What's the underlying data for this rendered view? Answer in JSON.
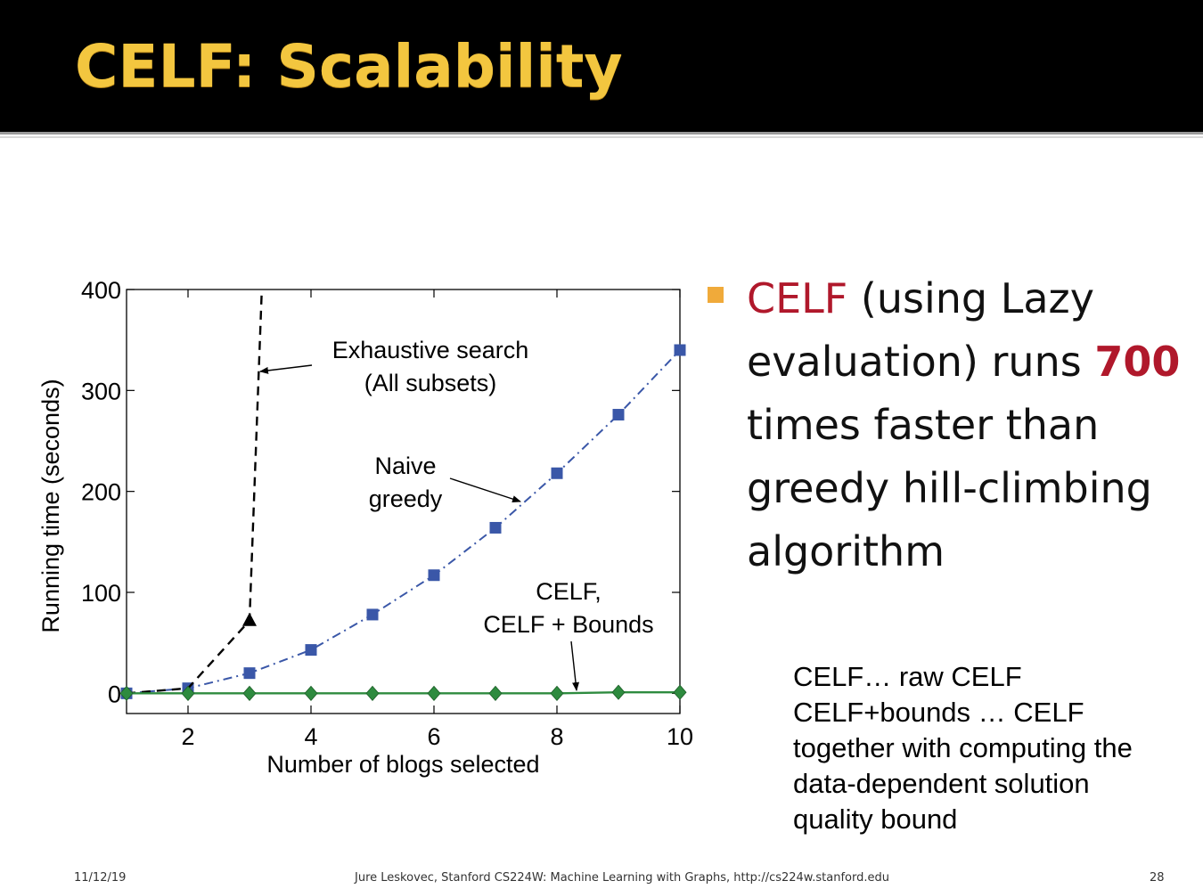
{
  "slide": {
    "title": "CELF: Scalability",
    "bullet": {
      "part1": "CELF",
      "part2": " (using Lazy evaluation) runs ",
      "part3": "700",
      "part4": " times faster than greedy hill-climbing algorithm"
    },
    "note_lines": [
      "CELF… raw CELF",
      "CELF+bounds … CELF",
      "together with computing the",
      "data-dependent solution",
      "quality bound"
    ],
    "footer": {
      "date": "11/12/19",
      "credit": "Jure Leskovec, Stanford CS224W: Machine Learning with Graphs, http://cs224w.stanford.edu",
      "page": "28"
    },
    "colors": {
      "title": "#f3c63f",
      "bullet_marker": "#f0aa3a",
      "highlight": "#b0182b"
    }
  },
  "chart_data": {
    "type": "line",
    "xlabel": "Number of blogs selected",
    "ylabel": "Running time (seconds)",
    "xlim": [
      1,
      10
    ],
    "ylim": [
      -20,
      400
    ],
    "xticks": [
      2,
      4,
      6,
      8,
      10
    ],
    "yticks": [
      0,
      100,
      200,
      300,
      400
    ],
    "grid": false,
    "series": [
      {
        "name": "Exhaustive search (All subsets)",
        "color": "#000000",
        "marker": "triangle",
        "x": [
          1,
          2,
          3,
          3.2
        ],
        "y": [
          0,
          5,
          72,
          400
        ]
      },
      {
        "name": "Naive greedy",
        "color": "#3a57a8",
        "marker": "square",
        "x": [
          1,
          2,
          3,
          4,
          5,
          6,
          7,
          8,
          9,
          10
        ],
        "y": [
          0,
          5,
          20,
          43,
          78,
          117,
          164,
          218,
          276,
          340
        ]
      },
      {
        "name": "CELF, CELF + Bounds",
        "color": "#2e8b3f",
        "marker": "diamond",
        "x": [
          1,
          2,
          3,
          4,
          5,
          6,
          7,
          8,
          9,
          10
        ],
        "y": [
          0,
          0,
          0,
          0,
          0,
          0,
          0,
          0,
          1,
          1
        ]
      }
    ],
    "annotations": [
      "Exhaustive search",
      "(All subsets)",
      "Naive",
      "greedy",
      "CELF,",
      "CELF + Bounds"
    ]
  }
}
